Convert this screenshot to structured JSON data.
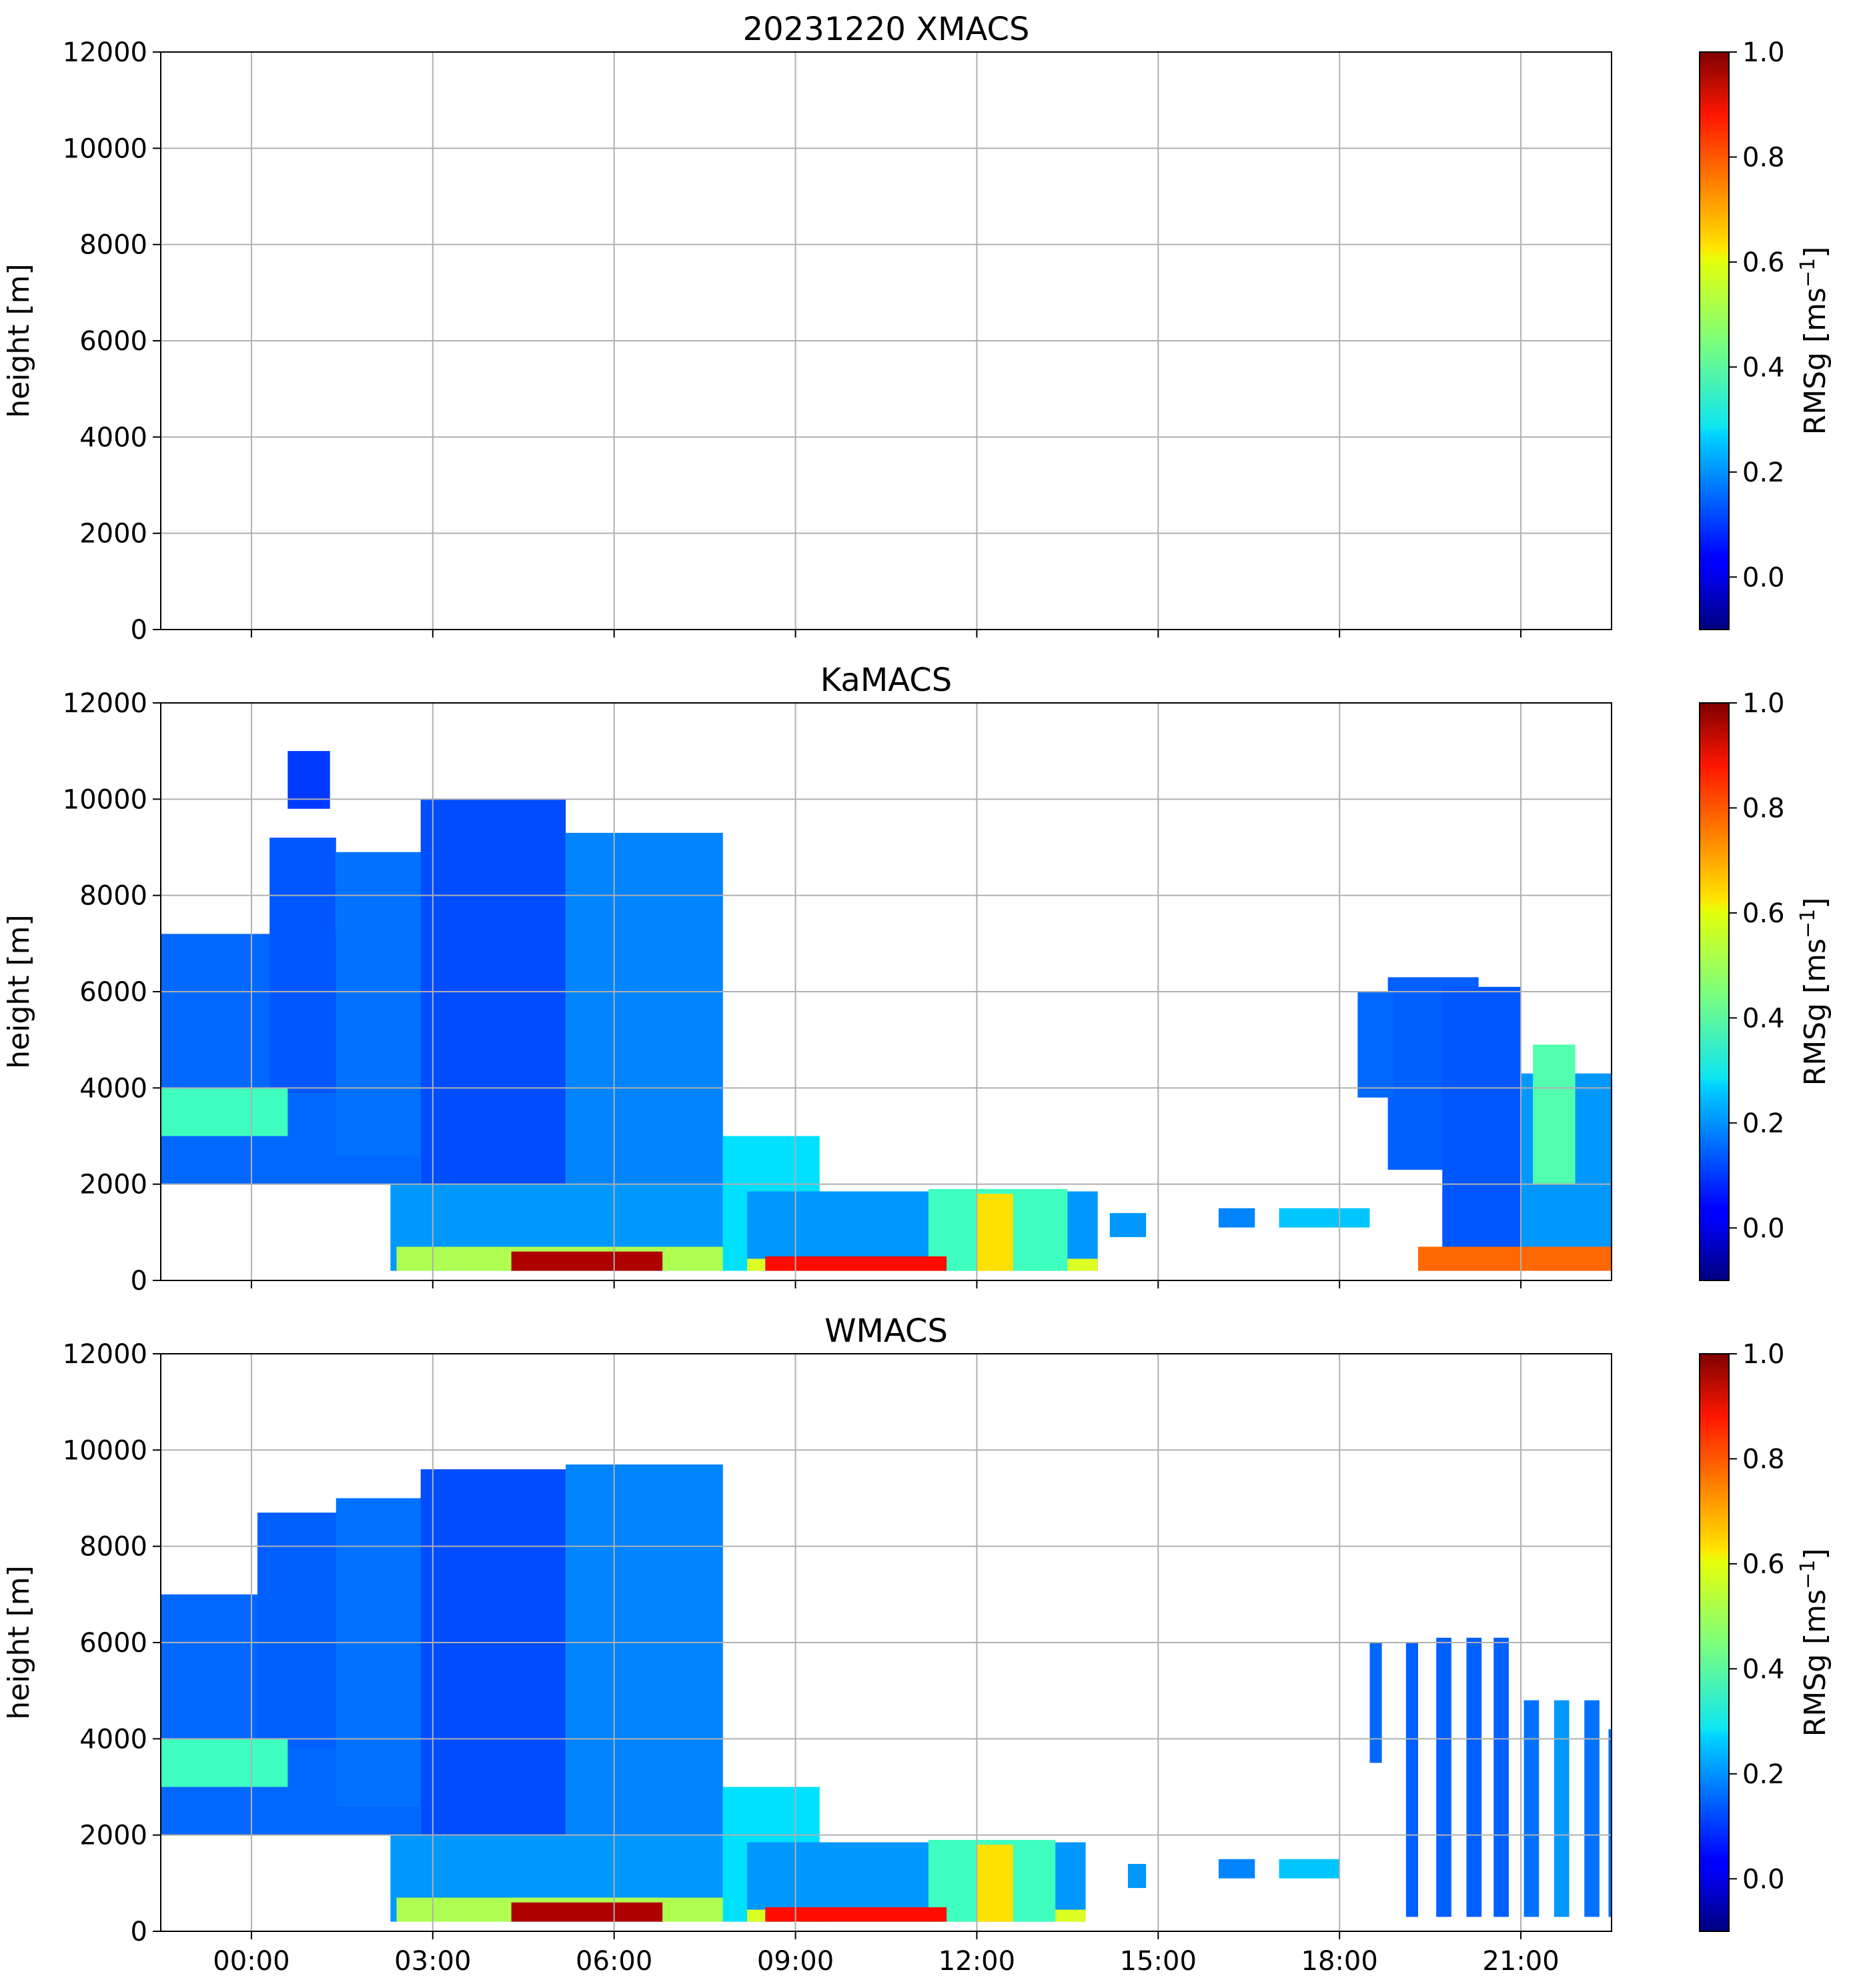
{
  "chart_data": [
    {
      "type": "heatmap",
      "title": "20231220 XMACS",
      "ylabel": "height [m]",
      "ylim": [
        0,
        12000
      ],
      "yticks": [
        0,
        2000,
        4000,
        6000,
        8000,
        10000,
        12000
      ],
      "xlim_hours": [
        -1.5,
        22.5
      ],
      "xtick_hours": [
        0,
        3,
        6,
        9,
        12,
        15,
        18,
        21
      ],
      "xtick_labels": [],
      "grid": true,
      "colorbar": {
        "label": "RMSg [ms",
        "label_exponent": "−1",
        "label_close": "]",
        "range": [
          -0.1,
          1.0
        ],
        "ticks": [
          1.0,
          0.8,
          0.6,
          0.4,
          0.2,
          0.0
        ],
        "tick_labels": [
          "1.0",
          "0.8",
          "0.6",
          "0.4",
          "0.2",
          "0.0"
        ],
        "colormap": "jet"
      },
      "regions": []
    },
    {
      "type": "heatmap",
      "title": "KaMACS",
      "ylabel": "height [m]",
      "ylim": [
        0,
        12000
      ],
      "yticks": [
        0,
        2000,
        4000,
        6000,
        8000,
        10000,
        12000
      ],
      "xlim_hours": [
        -1.5,
        22.5
      ],
      "xtick_hours": [
        0,
        3,
        6,
        9,
        12,
        15,
        18,
        21
      ],
      "xtick_labels": [],
      "grid": true,
      "colorbar": {
        "label": "RMSg [ms",
        "label_exponent": "−1",
        "label_close": "]",
        "range": [
          -0.1,
          1.0
        ],
        "ticks": [
          1.0,
          0.8,
          0.6,
          0.4,
          0.2,
          0.0
        ],
        "tick_labels": [
          "1.0",
          "0.8",
          "0.6",
          "0.4",
          "0.2",
          "0.0"
        ],
        "colormap": "jet"
      },
      "regions": [
        {
          "t0": -1.5,
          "t1": 2.8,
          "h0": 2000,
          "h1": 7200,
          "v": 0.15
        },
        {
          "t0": 0.3,
          "t1": 1.4,
          "h0": 3900,
          "h1": 9200,
          "v": 0.13
        },
        {
          "t0": 1.4,
          "t1": 3.9,
          "h0": 2600,
          "h1": 8900,
          "v": 0.16
        },
        {
          "t0": 0.6,
          "t1": 1.3,
          "h0": 9800,
          "h1": 11000,
          "v": 0.1
        },
        {
          "t0": 2.3,
          "t1": 7.8,
          "h0": 200,
          "h1": 2000,
          "v": 0.2
        },
        {
          "t0": 2.4,
          "t1": 7.8,
          "h0": 200,
          "h1": 700,
          "v": 0.5
        },
        {
          "t0": 2.8,
          "t1": 5.2,
          "h0": 2000,
          "h1": 10000,
          "v": 0.12
        },
        {
          "t0": 5.2,
          "t1": 7.8,
          "h0": 2000,
          "h1": 9300,
          "v": 0.18
        },
        {
          "t0": 4.3,
          "t1": 6.8,
          "h0": 200,
          "h1": 600,
          "v": 0.95
        },
        {
          "t0": -1.5,
          "t1": 0.6,
          "h0": 3000,
          "h1": 4000,
          "v": 0.38
        },
        {
          "t0": 7.8,
          "t1": 9.4,
          "h0": 200,
          "h1": 3000,
          "v": 0.28
        },
        {
          "t0": 8.2,
          "t1": 14.0,
          "h0": 200,
          "h1": 1850,
          "v": 0.2
        },
        {
          "t0": 8.2,
          "t1": 14.0,
          "h0": 200,
          "h1": 450,
          "v": 0.55
        },
        {
          "t0": 11.2,
          "t1": 13.5,
          "h0": 200,
          "h1": 1900,
          "v": 0.38
        },
        {
          "t0": 12.0,
          "t1": 12.6,
          "h0": 200,
          "h1": 1800,
          "v": 0.62
        },
        {
          "t0": 8.5,
          "t1": 11.5,
          "h0": 200,
          "h1": 500,
          "v": 0.85
        },
        {
          "t0": 14.2,
          "t1": 14.8,
          "h0": 900,
          "h1": 1400,
          "v": 0.2
        },
        {
          "t0": 16.0,
          "t1": 16.6,
          "h0": 1100,
          "h1": 1500,
          "v": 0.18
        },
        {
          "t0": 17.0,
          "t1": 18.5,
          "h0": 1100,
          "h1": 1500,
          "v": 0.25
        },
        {
          "t0": 18.8,
          "t1": 20.3,
          "h0": 2300,
          "h1": 6300,
          "v": 0.14
        },
        {
          "t0": 18.3,
          "t1": 18.9,
          "h0": 3800,
          "h1": 6000,
          "v": 0.15
        },
        {
          "t0": 19.7,
          "t1": 21.0,
          "h0": 300,
          "h1": 6100,
          "v": 0.13
        },
        {
          "t0": 21.0,
          "t1": 22.5,
          "h0": 300,
          "h1": 4300,
          "v": 0.2
        },
        {
          "t0": 21.2,
          "t1": 21.9,
          "h0": 2000,
          "h1": 4900,
          "v": 0.4
        },
        {
          "t0": 19.3,
          "t1": 22.5,
          "h0": 200,
          "h1": 700,
          "v": 0.75
        }
      ]
    },
    {
      "type": "heatmap",
      "title": "WMACS",
      "ylabel": "height [m]",
      "ylim": [
        0,
        12000
      ],
      "yticks": [
        0,
        2000,
        4000,
        6000,
        8000,
        10000,
        12000
      ],
      "xlim_hours": [
        -1.5,
        22.5
      ],
      "xtick_hours": [
        0,
        3,
        6,
        9,
        12,
        15,
        18,
        21
      ],
      "xtick_labels": [
        "00:00",
        "03:00",
        "06:00",
        "09:00",
        "12:00",
        "15:00",
        "18:00",
        "21:00"
      ],
      "grid": true,
      "colorbar": {
        "label": "RMSg [ms",
        "label_exponent": "−1",
        "label_close": "]",
        "range": [
          -0.1,
          1.0
        ],
        "ticks": [
          1.0,
          0.8,
          0.6,
          0.4,
          0.2,
          0.0
        ],
        "tick_labels": [
          "1.0",
          "0.8",
          "0.6",
          "0.4",
          "0.2",
          "0.0"
        ],
        "colormap": "jet"
      },
      "regions": [
        {
          "t0": -1.5,
          "t1": 2.8,
          "h0": 2000,
          "h1": 7000,
          "v": 0.15
        },
        {
          "t0": 0.1,
          "t1": 2.6,
          "h0": 3800,
          "h1": 8700,
          "v": 0.14
        },
        {
          "t0": 1.4,
          "t1": 3.9,
          "h0": 2600,
          "h1": 9000,
          "v": 0.16
        },
        {
          "t0": 2.3,
          "t1": 7.8,
          "h0": 200,
          "h1": 2000,
          "v": 0.2
        },
        {
          "t0": 2.4,
          "t1": 7.8,
          "h0": 200,
          "h1": 700,
          "v": 0.5
        },
        {
          "t0": 2.8,
          "t1": 5.2,
          "h0": 2000,
          "h1": 9600,
          "v": 0.12
        },
        {
          "t0": 5.2,
          "t1": 7.8,
          "h0": 2000,
          "h1": 9700,
          "v": 0.18
        },
        {
          "t0": 4.3,
          "t1": 6.8,
          "h0": 200,
          "h1": 600,
          "v": 0.95
        },
        {
          "t0": -1.5,
          "t1": 0.6,
          "h0": 3000,
          "h1": 4000,
          "v": 0.38
        },
        {
          "t0": 7.8,
          "t1": 9.4,
          "h0": 200,
          "h1": 3000,
          "v": 0.28
        },
        {
          "t0": 8.2,
          "t1": 13.8,
          "h0": 200,
          "h1": 1850,
          "v": 0.2
        },
        {
          "t0": 8.2,
          "t1": 13.8,
          "h0": 200,
          "h1": 450,
          "v": 0.55
        },
        {
          "t0": 11.2,
          "t1": 13.3,
          "h0": 200,
          "h1": 1900,
          "v": 0.38
        },
        {
          "t0": 12.0,
          "t1": 12.6,
          "h0": 200,
          "h1": 1800,
          "v": 0.62
        },
        {
          "t0": 8.5,
          "t1": 11.5,
          "h0": 200,
          "h1": 500,
          "v": 0.85
        },
        {
          "t0": 14.5,
          "t1": 14.8,
          "h0": 900,
          "h1": 1400,
          "v": 0.2
        },
        {
          "t0": 16.0,
          "t1": 16.6,
          "h0": 1100,
          "h1": 1500,
          "v": 0.18
        },
        {
          "t0": 17.0,
          "t1": 18.0,
          "h0": 1100,
          "h1": 1500,
          "v": 0.25
        },
        {
          "t0": 18.5,
          "t1": 18.7,
          "h0": 3500,
          "h1": 6000,
          "v": 0.15
        },
        {
          "t0": 19.1,
          "t1": 19.3,
          "h0": 300,
          "h1": 6000,
          "v": 0.14
        },
        {
          "t0": 19.6,
          "t1": 19.85,
          "h0": 300,
          "h1": 6100,
          "v": 0.14
        },
        {
          "t0": 20.1,
          "t1": 20.35,
          "h0": 300,
          "h1": 6100,
          "v": 0.14
        },
        {
          "t0": 20.55,
          "t1": 20.8,
          "h0": 300,
          "h1": 6100,
          "v": 0.14
        },
        {
          "t0": 21.05,
          "t1": 21.3,
          "h0": 300,
          "h1": 4800,
          "v": 0.16
        },
        {
          "t0": 21.55,
          "t1": 21.8,
          "h0": 300,
          "h1": 4800,
          "v": 0.2
        },
        {
          "t0": 22.05,
          "t1": 22.3,
          "h0": 300,
          "h1": 4800,
          "v": 0.16
        },
        {
          "t0": 22.45,
          "t1": 22.5,
          "h0": 300,
          "h1": 4200,
          "v": 0.16
        }
      ]
    }
  ]
}
